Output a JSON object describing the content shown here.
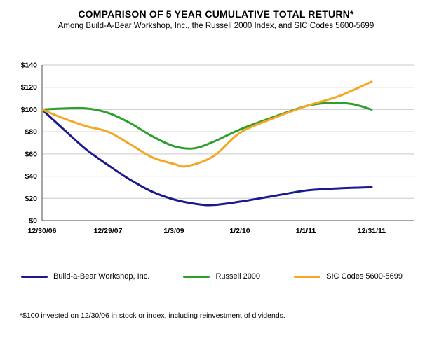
{
  "chart_data": {
    "type": "line",
    "title": "COMPARISON OF 5 YEAR CUMULATIVE TOTAL RETURN*",
    "subtitle": "Among Build-A-Bear Workshop, Inc., the Russell 2000 Index, and SIC Codes 5600-5699",
    "footnote": "*$100 invested on 12/30/06 in stock or index, including reinvestment of dividends.",
    "ylim": [
      0,
      140
    ],
    "xlim": [
      0,
      5
    ],
    "grid": true,
    "legend_position": "bottom",
    "grid_color": "#c9c9c9",
    "axis_color": "#4d4d4d",
    "y_ticks": [
      {
        "label": "$0",
        "value": 0
      },
      {
        "label": "$20",
        "value": 20
      },
      {
        "label": "$40",
        "value": 40
      },
      {
        "label": "$60",
        "value": 60
      },
      {
        "label": "$80",
        "value": 80
      },
      {
        "label": "$100",
        "value": 100
      },
      {
        "label": "$120",
        "value": 120
      },
      {
        "label": "$140",
        "value": 140
      }
    ],
    "x_ticks": [
      {
        "label": "12/30/06",
        "x": 0
      },
      {
        "label": "12/29/07",
        "x": 1
      },
      {
        "label": "1/3/09",
        "x": 2
      },
      {
        "label": "1/2/10",
        "x": 3
      },
      {
        "label": "1/1/11",
        "x": 4
      },
      {
        "label": "12/31/11",
        "x": 5
      }
    ],
    "series": [
      {
        "name": "Build-a-Bear Workshop, Inc.",
        "color": "#1a1a8c",
        "key_values": {
          "12/30/06": 100,
          "12/29/07": 50,
          "1/3/09": 19,
          "1/2/10": 17,
          "1/1/11": 27,
          "12/31/11": 30
        },
        "points": [
          [
            0,
            100
          ],
          [
            0.33,
            82
          ],
          [
            0.67,
            64
          ],
          [
            1,
            50
          ],
          [
            1.33,
            37
          ],
          [
            1.67,
            26
          ],
          [
            2,
            19
          ],
          [
            2.33,
            15
          ],
          [
            2.6,
            14
          ],
          [
            3,
            17
          ],
          [
            3.5,
            22
          ],
          [
            4,
            27
          ],
          [
            4.5,
            29
          ],
          [
            5,
            30
          ]
        ]
      },
      {
        "name": "Russell 2000",
        "color": "#2f9e2f",
        "key_values": {
          "12/30/06": 100,
          "12/29/07": 97,
          "1/3/09": 67,
          "1/2/10": 82,
          "1/1/11": 103,
          "12/31/11": 100
        },
        "points": [
          [
            0,
            100
          ],
          [
            0.33,
            101
          ],
          [
            0.67,
            101
          ],
          [
            1,
            97
          ],
          [
            1.33,
            88
          ],
          [
            1.67,
            76
          ],
          [
            2,
            67
          ],
          [
            2.3,
            65
          ],
          [
            2.6,
            71
          ],
          [
            3,
            82
          ],
          [
            3.5,
            93
          ],
          [
            4,
            103
          ],
          [
            4.35,
            106
          ],
          [
            4.7,
            105
          ],
          [
            5,
            100
          ]
        ]
      },
      {
        "name": "SIC Codes 5600-5699",
        "color": "#f5a623",
        "key_values": {
          "12/30/06": 100,
          "12/29/07": 80,
          "1/3/09": 51,
          "1/2/10": 79,
          "1/1/11": 103,
          "12/31/11": 125
        },
        "points": [
          [
            0,
            100
          ],
          [
            0.33,
            92
          ],
          [
            0.67,
            85
          ],
          [
            1,
            80
          ],
          [
            1.33,
            69
          ],
          [
            1.67,
            57
          ],
          [
            2,
            51
          ],
          [
            2.2,
            49
          ],
          [
            2.6,
            58
          ],
          [
            3,
            79
          ],
          [
            3.5,
            92
          ],
          [
            4,
            103
          ],
          [
            4.5,
            112
          ],
          [
            5,
            125
          ]
        ]
      }
    ]
  }
}
